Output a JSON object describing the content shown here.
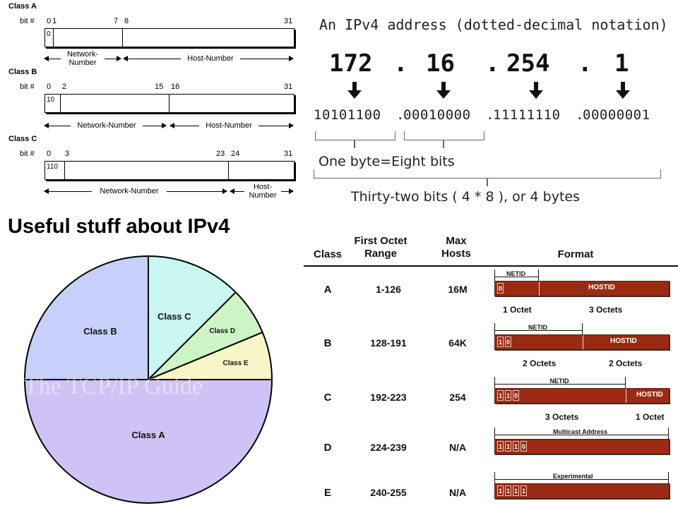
{
  "heading": "Useful stuff about IPv4",
  "class_layout": {
    "bit_label": "bit #",
    "classes": [
      {
        "name": "Class A",
        "bits": [
          "0",
          "1",
          "7",
          "8",
          "31"
        ],
        "prefix": "0",
        "ranges": [
          "Network-\nNumber",
          "Host-Number"
        ]
      },
      {
        "name": "Class B",
        "bits": [
          "0",
          "2",
          "15",
          "16",
          "31"
        ],
        "prefix": "10",
        "ranges": [
          "Network-Number",
          "Host-Number"
        ]
      },
      {
        "name": "Class C",
        "bits": [
          "0",
          "3",
          "23",
          "24",
          "31"
        ],
        "prefix": "110",
        "ranges": [
          "Network-Number",
          "Host-\nNumber"
        ]
      }
    ]
  },
  "dotted_decimal": {
    "title": "An IPv4 address (dotted-decimal notation)",
    "octets": [
      "172",
      "16",
      "254",
      "1"
    ],
    "dot": ".",
    "binary": [
      "10101100",
      "00010000",
      "11111110",
      "00000001"
    ],
    "one_byte": "One byte=Eight bits",
    "total": "Thirty-two bits ( 4 * 8 ), or 4 bytes"
  },
  "pie": {
    "watermark": "The TCP/IP Guide",
    "slices": [
      {
        "label": "Class A",
        "fraction": 0.5,
        "color": "#cfc2f5"
      },
      {
        "label": "Class B",
        "fraction": 0.25,
        "color": "#c6d0fa"
      },
      {
        "label": "Class C",
        "fraction": 0.125,
        "color": "#c8f7f0"
      },
      {
        "label": "Class D",
        "fraction": 0.0625,
        "color": "#cdf4c6"
      },
      {
        "label": "Class E",
        "fraction": 0.0625,
        "color": "#f8f6c6"
      }
    ]
  },
  "class_table": {
    "headers": [
      "Class",
      "First Octet\nRange",
      "Max\nHosts",
      "Format"
    ],
    "rows": [
      {
        "class": "A",
        "range": "1-126",
        "hosts": "16M",
        "bits": [
          "0"
        ],
        "top_label": "NETID",
        "bar_label": "HOSTID",
        "octets": [
          "1 Octet",
          "3 Octets"
        ]
      },
      {
        "class": "B",
        "range": "128-191",
        "hosts": "64K",
        "bits": [
          "1",
          "0"
        ],
        "top_label": "NETID",
        "bar_label": "HOSTID",
        "octets": [
          "2 Octets",
          "2 Octets"
        ]
      },
      {
        "class": "C",
        "range": "192-223",
        "hosts": "254",
        "bits": [
          "1",
          "1",
          "0"
        ],
        "top_label": "NETID",
        "bar_label": "HOSTID",
        "octets": [
          "3 Octets",
          "1 Octet"
        ]
      },
      {
        "class": "D",
        "range": "224-239",
        "hosts": "N/A",
        "bits": [
          "1",
          "1",
          "1",
          "0"
        ],
        "top_label": "Multicast Address",
        "bar_label": "",
        "octets": []
      },
      {
        "class": "E",
        "range": "240-255",
        "hosts": "N/A",
        "bits": [
          "1",
          "1",
          "1",
          "1"
        ],
        "top_label": "Experimental",
        "bar_label": "",
        "octets": []
      }
    ],
    "bar_color": "#9b2a12"
  }
}
